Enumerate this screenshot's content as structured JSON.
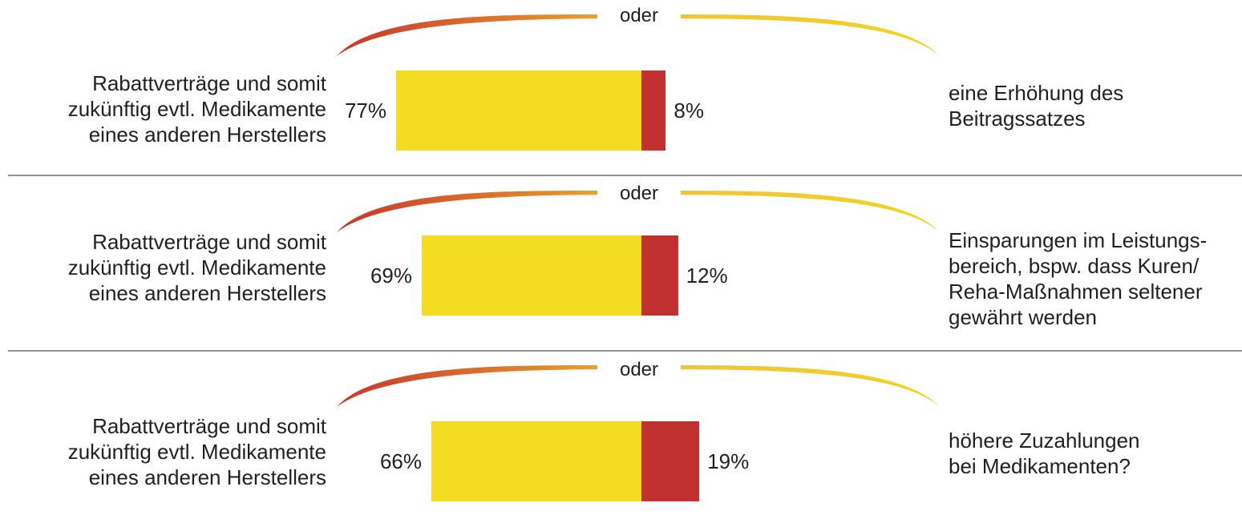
{
  "chart_data": {
    "type": "bar",
    "stacked": true,
    "connector_label": "oder",
    "rows": [
      {
        "left_label_lines": [
          "Rabattverträge und somit",
          "zukünftig evtl. Medikamente",
          "eines anderen Herstellers"
        ],
        "left_value": 77,
        "left_value_label": "77%",
        "right_value": 8,
        "right_value_label": "8%",
        "right_label_lines": [
          "eine Erhöhung des",
          "Beitragssatzes"
        ]
      },
      {
        "left_label_lines": [
          "Rabattverträge und somit",
          "zukünftig evtl. Medikamente",
          "eines anderen Herstellers"
        ],
        "left_value": 69,
        "left_value_label": "69%",
        "right_value": 12,
        "right_value_label": "12%",
        "right_label_lines": [
          "Einsparungen im Leistungs-",
          "bereich, bspw. dass Kuren/",
          "Reha-Maßnahmen seltener",
          "gewährt werden"
        ]
      },
      {
        "left_label_lines": [
          "Rabattverträge und somit",
          "zukünftig evtl. Medikamente",
          "eines anderen Herstellers"
        ],
        "left_value": 66,
        "left_value_label": "66%",
        "right_value": 19,
        "right_value_label": "19%",
        "right_label_lines": [
          "höhere Zuzahlungen",
          "bei Medikamenten?"
        ]
      }
    ],
    "colors": {
      "left_segment": "#f4dc22",
      "right_segment": "#c0312f",
      "arc_start": "#c8352d",
      "arc_end": "#f2d41e",
      "divider": "#6d6e71"
    }
  }
}
